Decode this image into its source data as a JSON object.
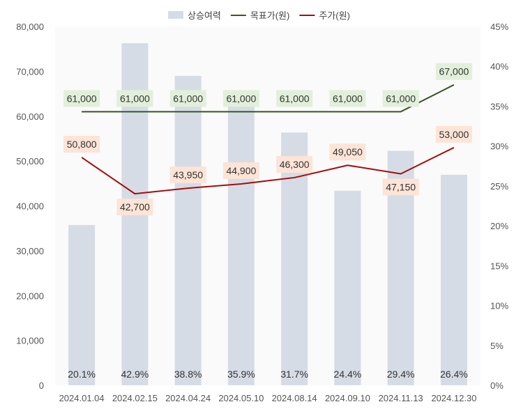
{
  "chart_data": {
    "type": "bar",
    "categories": [
      "2024.01.04",
      "2024.02.15",
      "2024.04.24",
      "2024.05.10",
      "2024.08.14",
      "2024.09.10",
      "2024.11.13",
      "2024.12.30"
    ],
    "series": [
      {
        "name": "상승여력",
        "type": "bar",
        "axis": "right",
        "values": [
          20.1,
          42.9,
          38.8,
          35.9,
          31.7,
          24.4,
          29.4,
          26.4
        ],
        "labels": [
          "20.1%",
          "42.9%",
          "38.8%",
          "35.9%",
          "31.7%",
          "24.4%",
          "29.4%",
          "26.4%"
        ],
        "color": "#d6dce5"
      },
      {
        "name": "목표가(원)",
        "type": "line",
        "axis": "left",
        "values": [
          61000,
          61000,
          61000,
          61000,
          61000,
          61000,
          61000,
          67000
        ],
        "labels": [
          "61,000",
          "61,000",
          "61,000",
          "61,000",
          "61,000",
          "61,000",
          "61,000",
          "67,000"
        ],
        "color": "#375623",
        "label_bg": "#e2efda"
      },
      {
        "name": "주가(원)",
        "type": "line",
        "axis": "left",
        "values": [
          50800,
          42700,
          43950,
          44900,
          46300,
          49050,
          47150,
          53000
        ],
        "labels": [
          "50,800",
          "42,700",
          "43,950",
          "44,900",
          "46,300",
          "49,050",
          "47,150",
          "53,000"
        ],
        "color": "#a50d0d",
        "label_bg": "#fce4d6"
      }
    ],
    "y_left": {
      "ylim": [
        0,
        80000
      ],
      "ticks": [
        0,
        10000,
        20000,
        30000,
        40000,
        50000,
        60000,
        70000,
        80000
      ],
      "tick_labels": [
        "0",
        "10,000",
        "20,000",
        "30,000",
        "40,000",
        "50,000",
        "60,000",
        "70,000",
        "80,000"
      ]
    },
    "y_right": {
      "ylim": [
        0,
        45
      ],
      "ticks": [
        0,
        5,
        10,
        15,
        20,
        25,
        30,
        35,
        40,
        45
      ],
      "tick_labels": [
        "0%",
        "5%",
        "10%",
        "15%",
        "20%",
        "25%",
        "30%",
        "35%",
        "40%",
        "45%"
      ]
    },
    "legend_position": "top-center",
    "grid": false,
    "plot_background": "#fafafa"
  }
}
